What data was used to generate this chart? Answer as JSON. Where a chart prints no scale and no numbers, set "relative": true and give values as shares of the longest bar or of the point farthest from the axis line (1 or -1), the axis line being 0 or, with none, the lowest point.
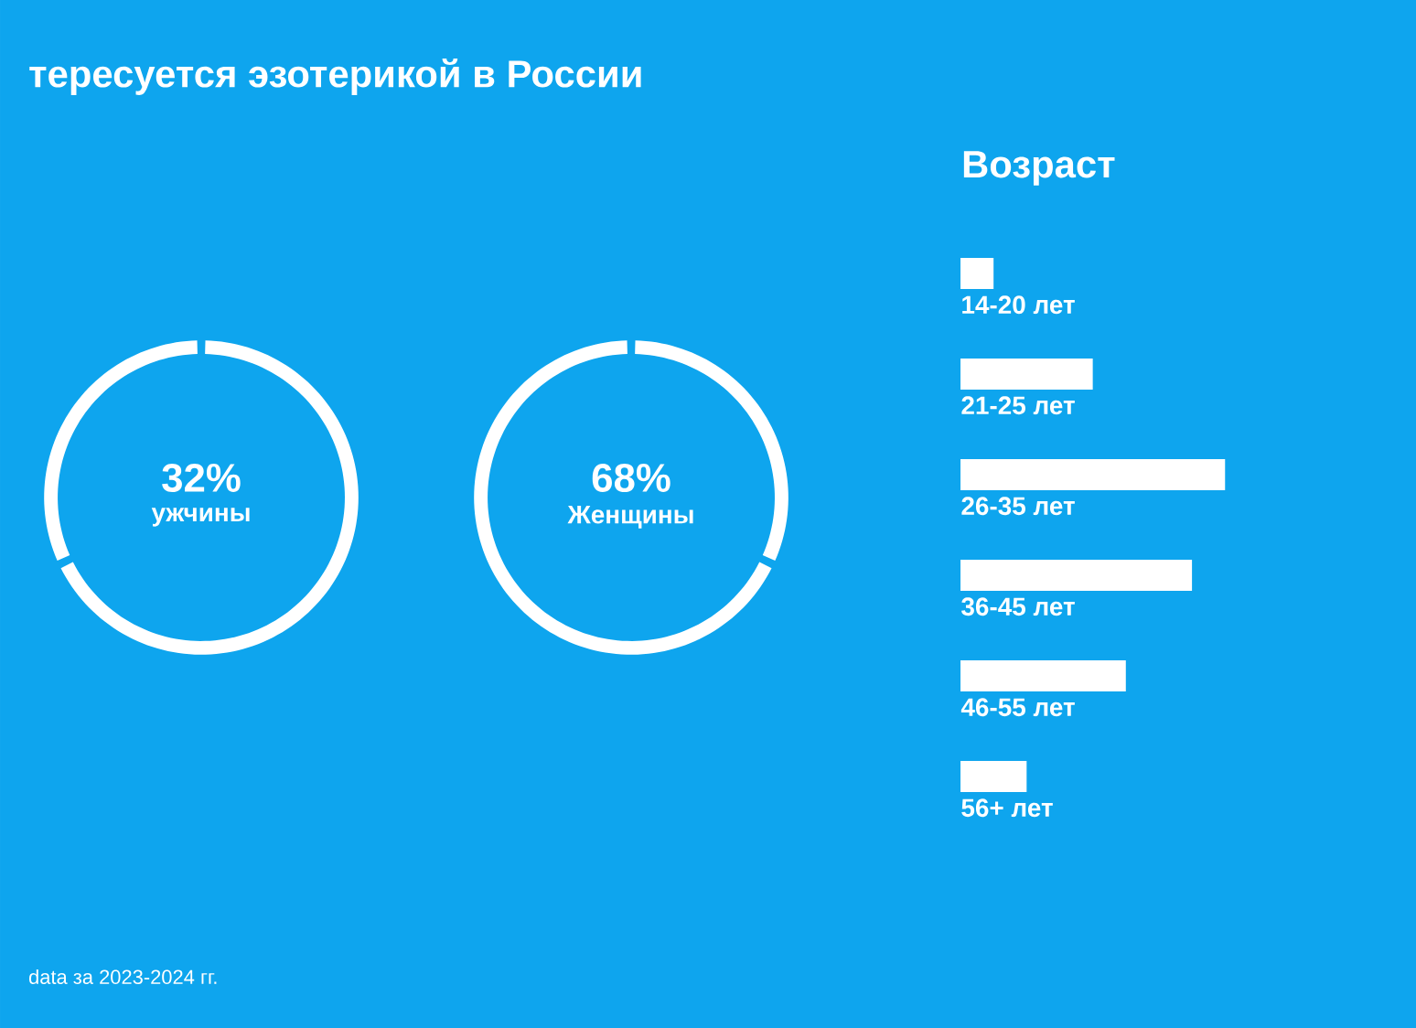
{
  "chart_data": [
    {
      "type": "donut",
      "title": "тересуется эзотерикой в России",
      "categories": [
        "ужчины",
        null
      ],
      "values": [
        32,
        68
      ],
      "value_labels": [
        "32%",
        null
      ],
      "colors": [
        "#ffffff",
        "#ffffff"
      ],
      "annotations": [
        "data за 2023-2024 гг."
      ]
    },
    {
      "type": "donut",
      "categories": [
        "Женщины",
        null
      ],
      "values": [
        68,
        32
      ],
      "value_labels": [
        "68%",
        null
      ],
      "colors": [
        "#ffffff",
        "#ffffff"
      ]
    },
    {
      "type": "bar",
      "orientation": "horizontal",
      "relative": true,
      "title": "Возраст",
      "categories": [
        "14-20 лет",
        "21-25 лет",
        "26-35 лет",
        "36-45 лет",
        "46-55 лет",
        "56+ лет"
      ],
      "values": [
        0.125,
        0.5,
        1,
        0.875,
        0.625,
        0.25
      ],
      "color": "#ffffff"
    }
  ]
}
